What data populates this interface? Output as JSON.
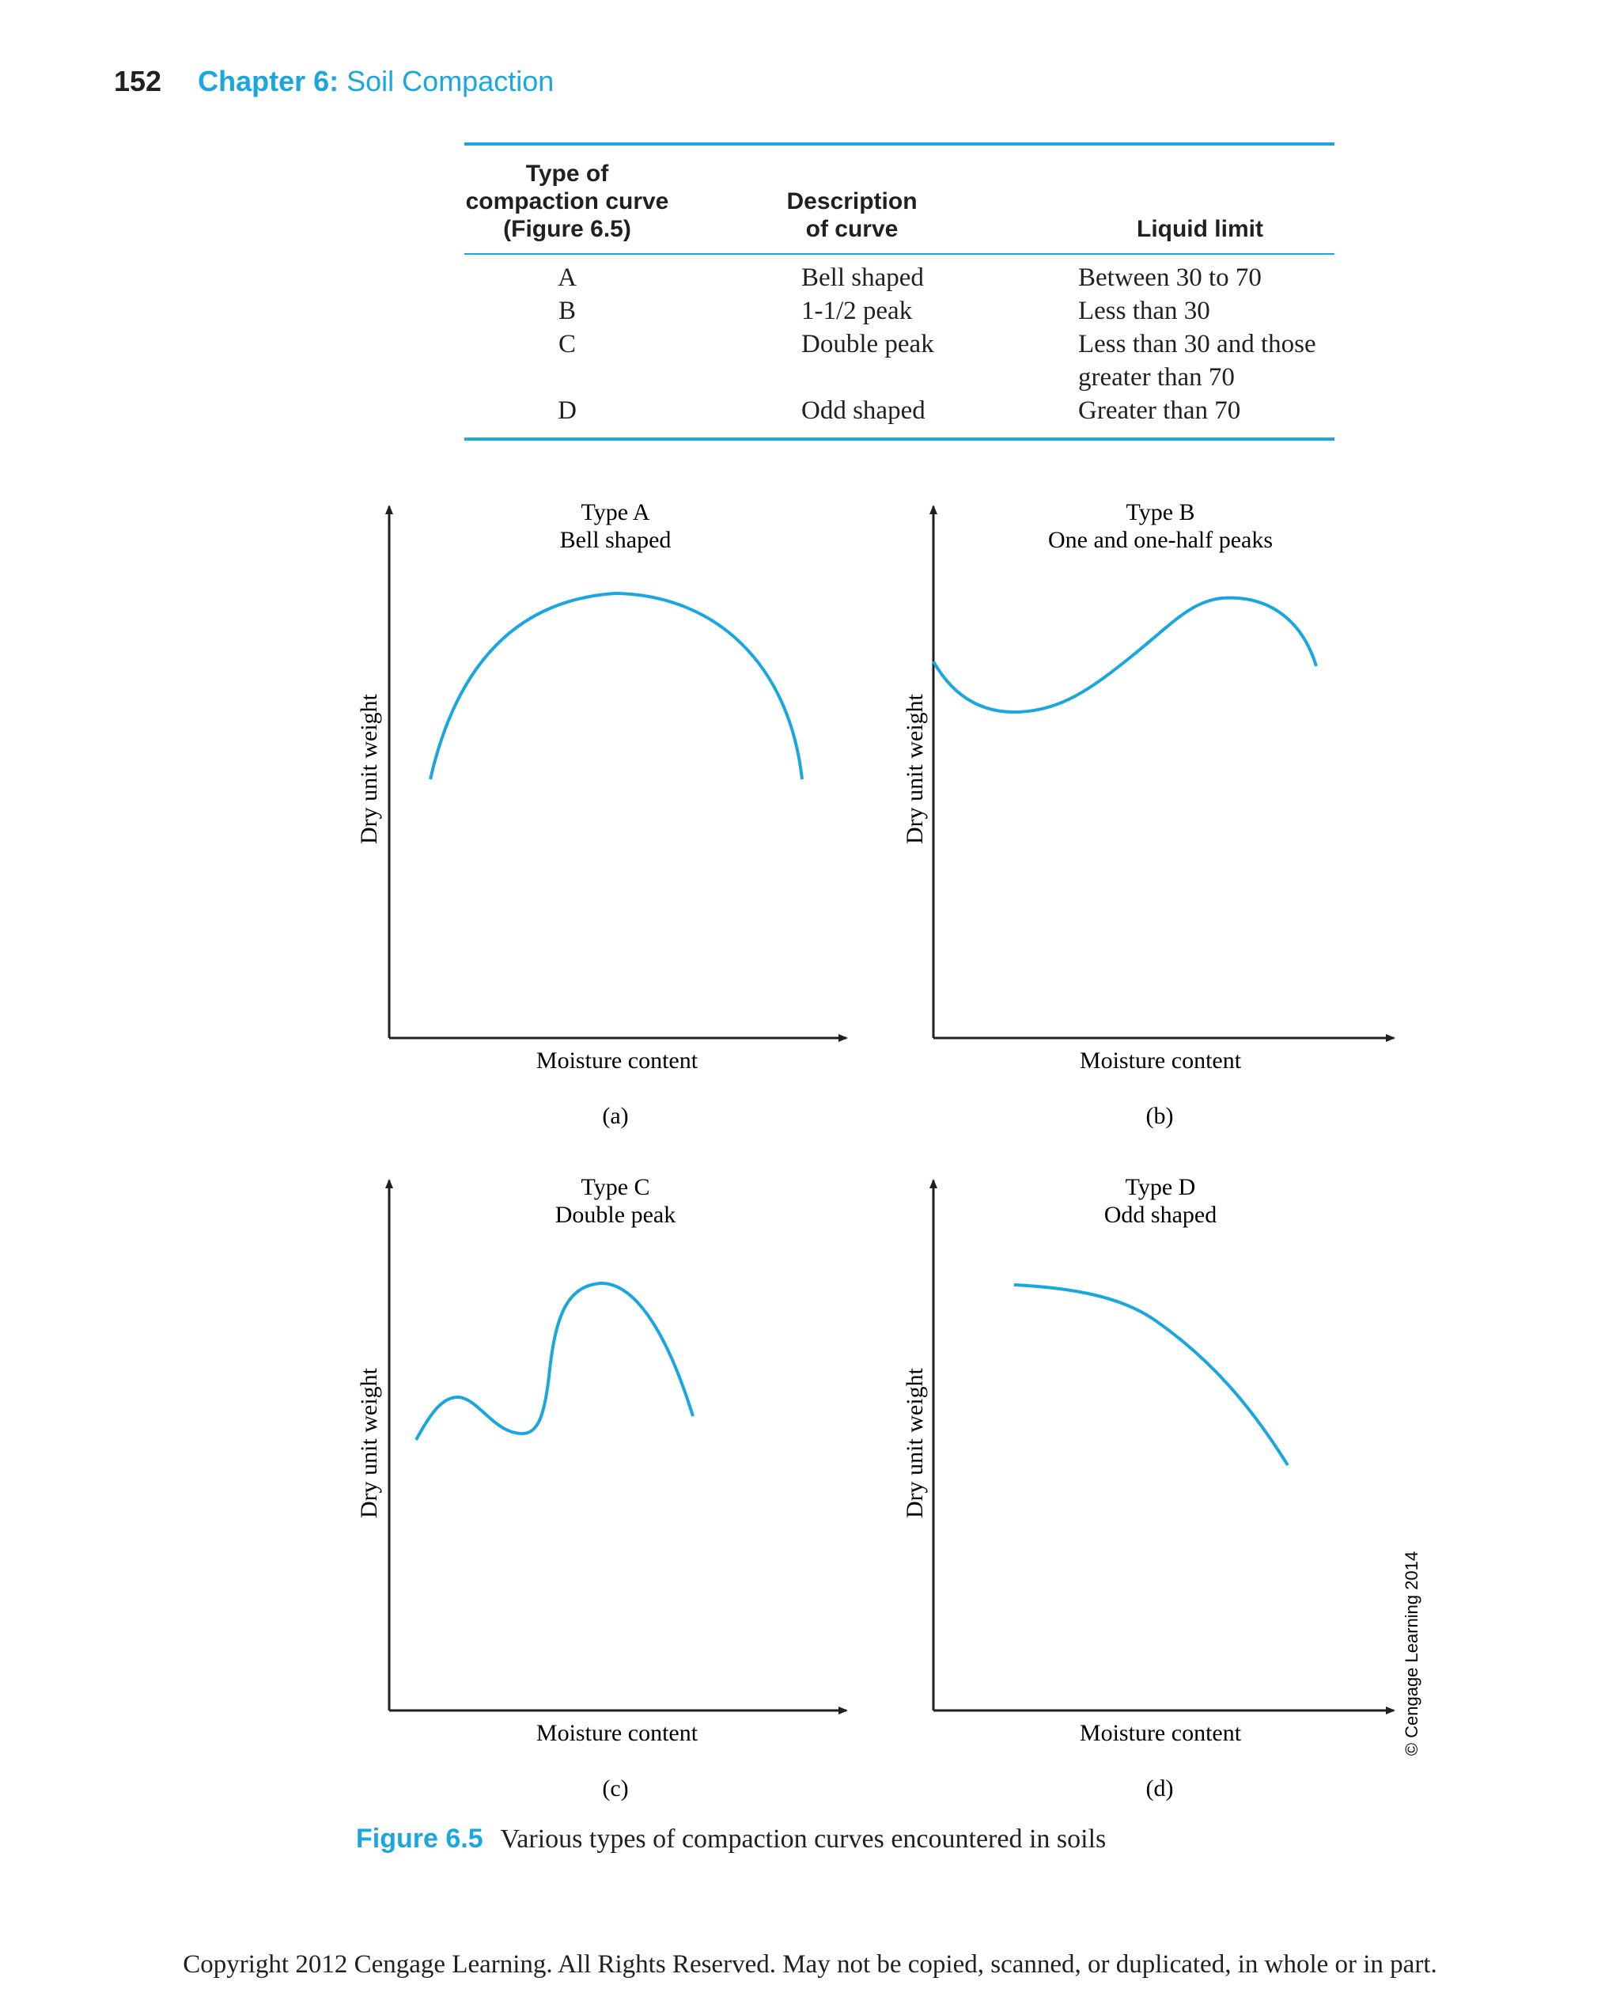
{
  "header": {
    "page_number": "152",
    "chapter_label": "Chapter 6:",
    "chapter_title": "Soil Compaction"
  },
  "table": {
    "headers": [
      "Type of\ncompaction curve\n(Figure 6.5)",
      "Description\nof curve",
      "Liquid limit"
    ],
    "rows": [
      {
        "type": "A",
        "description": "Bell shaped",
        "liquid_limit": "Between 30 to 70"
      },
      {
        "type": "B",
        "description": "1-1/2 peak",
        "liquid_limit": "Less than 30"
      },
      {
        "type": "C",
        "description": "Double peak",
        "liquid_limit": "Less than 30 and those greater than 70"
      },
      {
        "type": "D",
        "description": "Odd shaped",
        "liquid_limit": "Greater than 70"
      }
    ]
  },
  "chart_data": [
    {
      "type": "line",
      "title": "Type A",
      "subtitle": "Bell shaped",
      "xlabel": "Moisture content",
      "ylabel": "Dry unit weight",
      "panel_label": "(a)",
      "axis_ticks": "none",
      "grid": false
    },
    {
      "type": "line",
      "title": "Type B",
      "subtitle": "One and one-half peaks",
      "xlabel": "Moisture content",
      "ylabel": "Dry unit weight",
      "panel_label": "(b)",
      "axis_ticks": "none",
      "grid": false
    },
    {
      "type": "line",
      "title": "Type C",
      "subtitle": "Double peak",
      "xlabel": "Moisture content",
      "ylabel": "Dry unit weight",
      "panel_label": "(c)",
      "axis_ticks": "none",
      "grid": false
    },
    {
      "type": "line",
      "title": "Type D",
      "subtitle": "Odd shaped",
      "xlabel": "Moisture content",
      "ylabel": "Dry unit weight",
      "panel_label": "(d)",
      "axis_ticks": "none",
      "grid": false
    }
  ],
  "colors": {
    "accent": "#1aa7df",
    "text": "#231f20"
  },
  "figure": {
    "label": "Figure 6.5",
    "caption": "Various types of compaction curves encountered in soils",
    "credit": "© Cengage Learning 2014"
  },
  "footer": {
    "copyright": "Copyright 2012 Cengage Learning. All Rights Reserved. May not be copied, scanned, or duplicated, in whole or in part."
  }
}
